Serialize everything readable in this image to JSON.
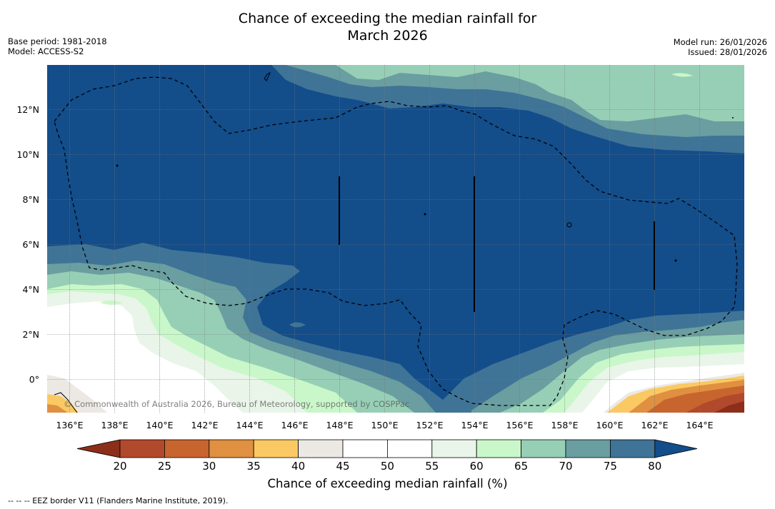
{
  "title_line1": "Chance of exceeding the median rainfall for",
  "title_line2": "March 2026",
  "meta_left": {
    "base_period": "Base period: 1981-2018",
    "model": "Model: ACCESS-S2"
  },
  "meta_right": {
    "model_run": "Model run: 26/01/2026",
    "issued": "Issued: 28/01/2026"
  },
  "copyright": "© Commonwealth of Australia 2026, Bureau of Meteorology, supported by COSPPac",
  "footer": "--  --  -- EEZ border V11 (Flanders Marine Institute, 2019).",
  "map": {
    "lon_labels": [
      "136°E",
      "138°E",
      "140°E",
      "142°E",
      "144°E",
      "146°E",
      "148°E",
      "150°E",
      "152°E",
      "154°E",
      "156°E",
      "158°E",
      "160°E",
      "162°E",
      "164°E"
    ],
    "lat_labels": [
      "12°N",
      "10°N",
      "8°N",
      "6°N",
      "4°N",
      "2°N",
      "0°"
    ]
  },
  "colorbar": {
    "title": "Chance of exceeding median rainfall (%)",
    "ticks": [
      "20",
      "25",
      "30",
      "35",
      "40",
      "45",
      "50",
      "55",
      "60",
      "65",
      "70",
      "75",
      "80"
    ],
    "colors": [
      "#b14a2c",
      "#c8652e",
      "#df9040",
      "#fbc963",
      "#ece9e4",
      "#ffffff",
      "#ffffff",
      "#e9f5e9",
      "#c9f7c9",
      "#97cfb6",
      "#6a9ea0",
      "#3f7497"
    ],
    "low_color": "#8c2e19",
    "high_color": "#134d8a"
  },
  "field_colors": {
    "deep_blue": "#134d8a",
    "blue_teal": "#3f7497",
    "teal": "#6a9ea0",
    "mint": "#97cfb6",
    "light_green": "#c9f7c9",
    "pale_green": "#e9f5e9",
    "white": "#ffffff",
    "grey": "#ece9e4",
    "yellow": "#fbc963",
    "orange": "#df9040",
    "rust": "#c8652e",
    "brown": "#b14a2c",
    "dark_brown": "#8c2e19"
  }
}
